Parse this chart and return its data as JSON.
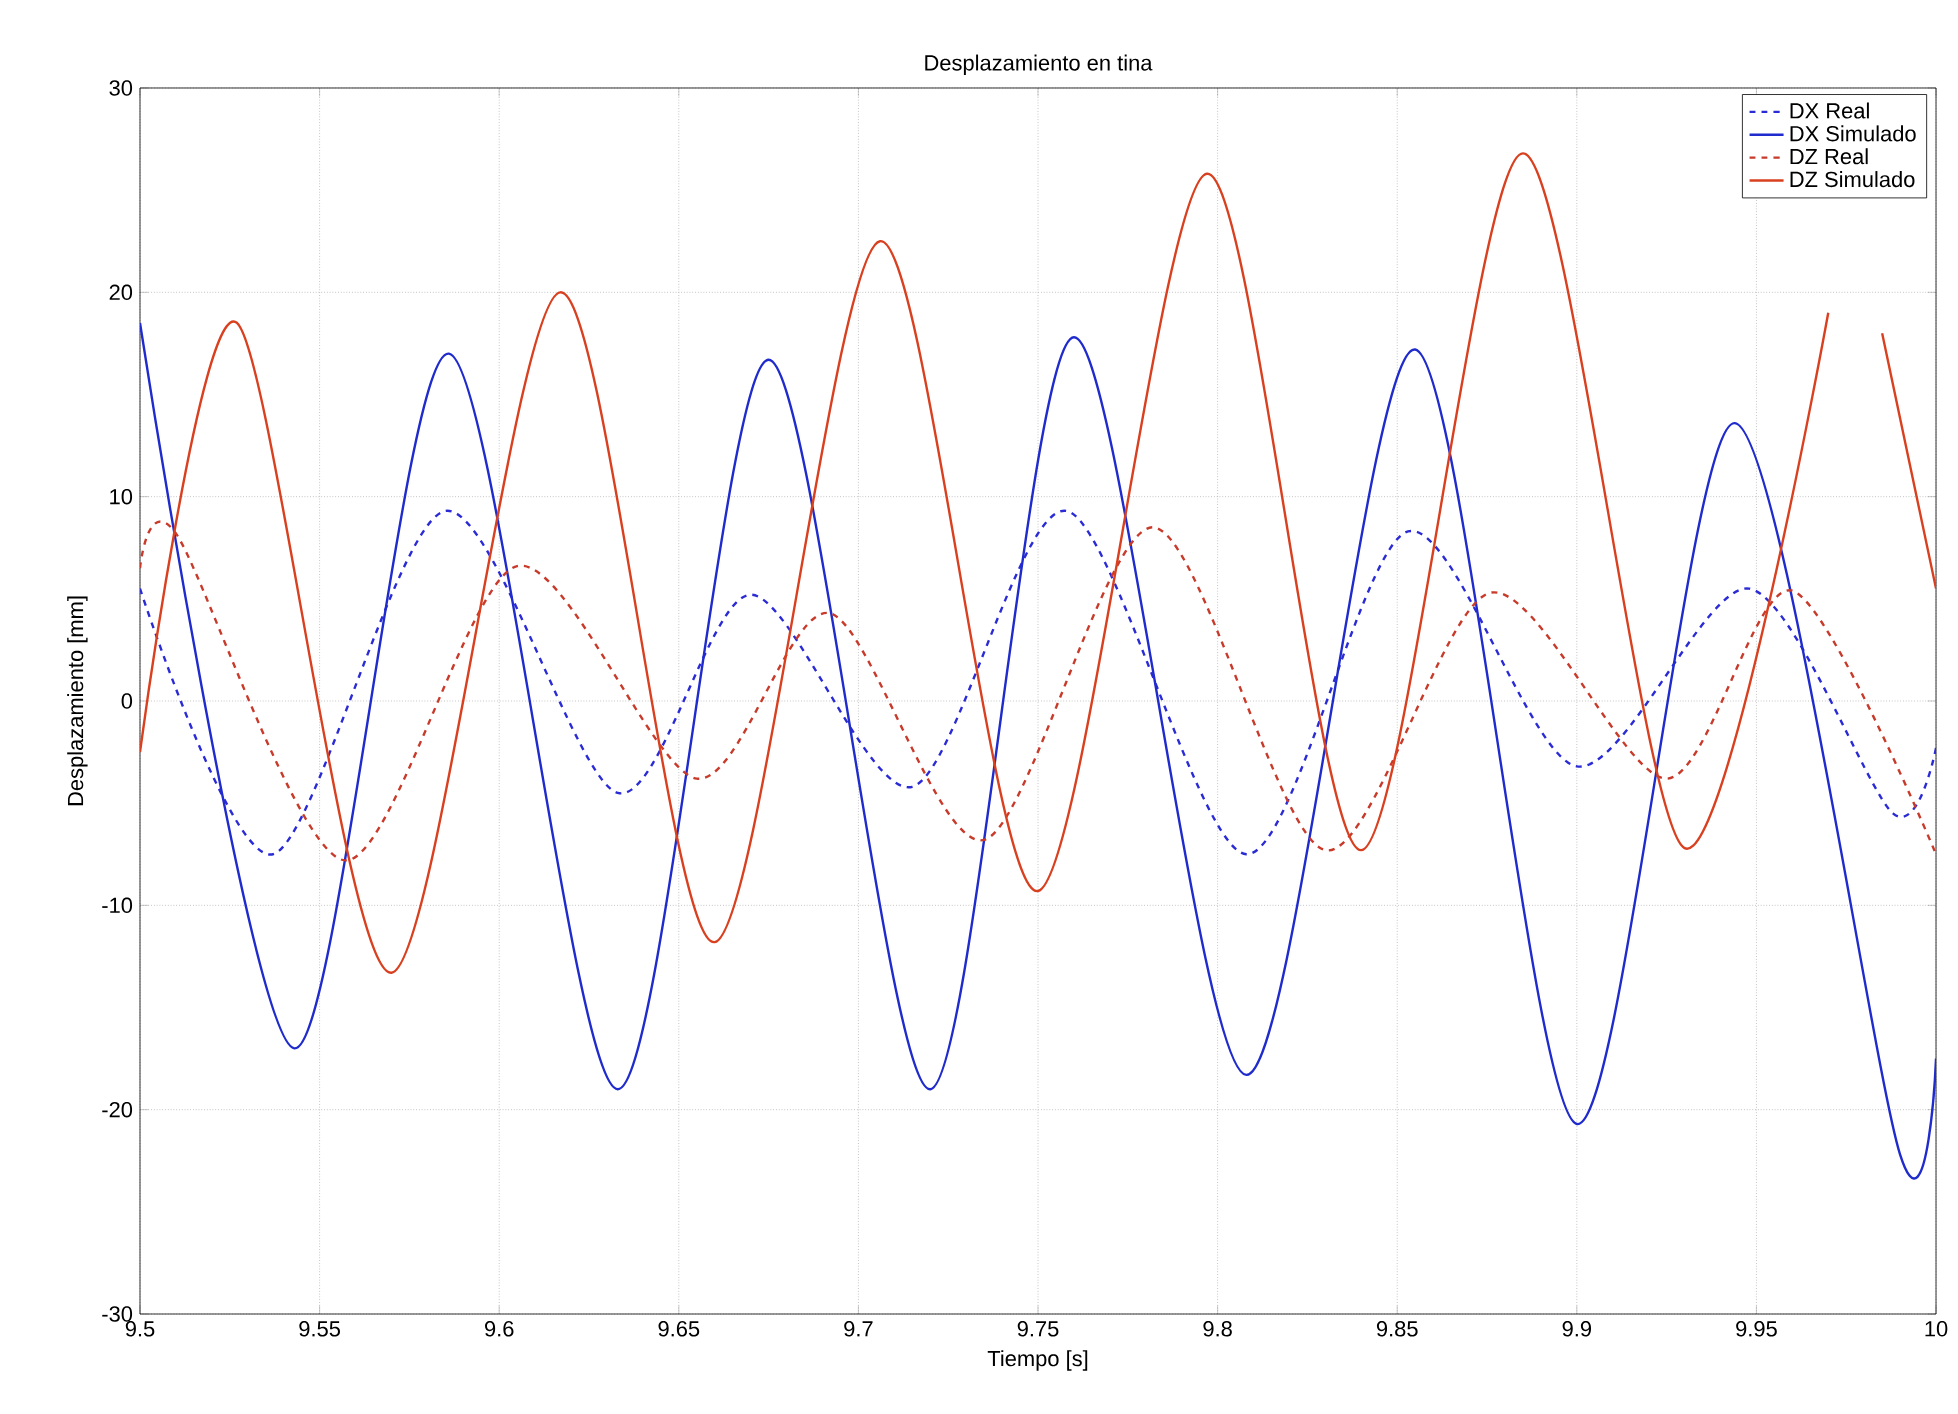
{
  "chart_data": {
    "type": "line",
    "title": "Desplazamiento en tina",
    "xlabel": "Tiempo [s]",
    "ylabel": "Desplazamiento [mm]",
    "xlim": [
      9.5,
      10
    ],
    "ylim": [
      -30,
      30
    ],
    "xticks": [
      9.5,
      9.55,
      9.6,
      9.65,
      9.7,
      9.75,
      9.8,
      9.85,
      9.9,
      9.95,
      10
    ],
    "yticks": [
      -30,
      -20,
      -10,
      0,
      10,
      20,
      30
    ],
    "grid": true,
    "legend": "top right",
    "series": [
      {
        "name": "DX Real",
        "color": "#2b2bd6",
        "line_style": "dashed",
        "x": [
          9.5,
          9.537,
          9.585,
          9.633,
          9.67,
          9.715,
          9.758,
          9.808,
          9.853,
          9.9,
          9.948,
          9.988,
          10.0
        ],
        "values": [
          5.5,
          -7.5,
          9.3,
          -4.5,
          5.2,
          -4.2,
          9.3,
          -7.5,
          8.3,
          -3.2,
          5.5,
          -5.5,
          -2.3
        ]
      },
      {
        "name": "DX Simulado",
        "color": "#1f2bcc",
        "line_style": "solid",
        "x": [
          9.5,
          9.543,
          9.586,
          9.633,
          9.675,
          9.72,
          9.76,
          9.808,
          9.855,
          9.9,
          9.944,
          9.99,
          10.0
        ],
        "values": [
          18.5,
          -17,
          17,
          -19,
          16.7,
          -19,
          17.8,
          -18.3,
          17.2,
          -20.7,
          13.6,
          -22.2,
          -17.5
        ]
      },
      {
        "name": "DZ Real",
        "color": "#c83a2a",
        "line_style": "dashed",
        "x": [
          9.5,
          9.51,
          9.557,
          9.605,
          9.655,
          9.692,
          9.735,
          9.782,
          9.83,
          9.876,
          9.925,
          9.96,
          10.0
        ],
        "values": [
          6.5,
          8.2,
          -7.8,
          6.6,
          -3.8,
          4.3,
          -6.8,
          8.5,
          -7.3,
          5.3,
          -3.8,
          5.4,
          -7.5
        ]
      },
      {
        "name": "DZ Simulado",
        "color": "#d9401f",
        "line_style": "solid",
        "x": [
          9.5,
          9.527,
          9.57,
          9.617,
          9.66,
          9.706,
          9.75,
          9.797,
          9.84,
          9.885,
          9.93,
          9.97,
          9.977,
          9.985,
          10.0
        ],
        "values": [
          -2.5,
          18.5,
          -13.3,
          20,
          -11.8,
          22.5,
          -9.3,
          25.8,
          -7.3,
          26.8,
          -7.2,
          19,
          null,
          18,
          5.5
        ]
      }
    ]
  }
}
